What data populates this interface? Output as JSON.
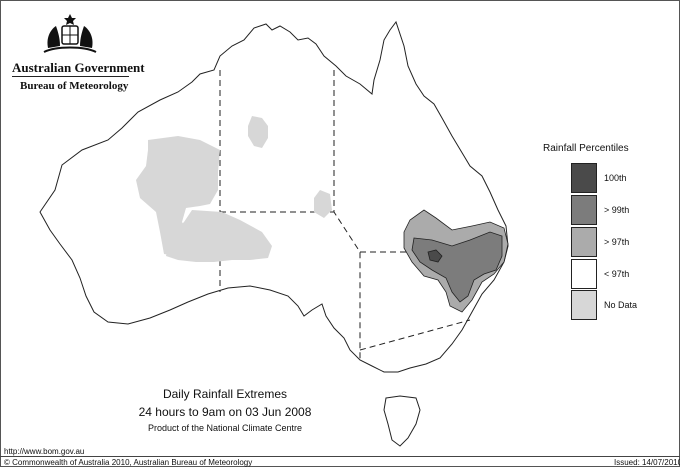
{
  "branding": {
    "government": "Australian Government",
    "bureau": "Bureau of Meteorology",
    "logo_icon": "coat-of-arms-icon"
  },
  "legend": {
    "title": "Rainfall Percentiles",
    "items": [
      {
        "label": "100th",
        "color": "#4a4a4a"
      },
      {
        "label": "> 99th",
        "color": "#7c7c7c"
      },
      {
        "label": "> 97th",
        "color": "#ababab"
      },
      {
        "label": "< 97th",
        "color": "#ffffff"
      },
      {
        "label": "No Data",
        "color": "#d7d7d7"
      }
    ]
  },
  "caption": {
    "title": "Daily Rainfall Extremes",
    "period": "24 hours to 9am on 03 Jun 2008",
    "product": "Product of the National Climate Centre"
  },
  "footer": {
    "url": "http://www.bom.gov.au",
    "copyright": "© Commonwealth of Australia 2010, Australian Bureau of Meteorology",
    "issued": "Issued: 14/07/2010"
  }
}
